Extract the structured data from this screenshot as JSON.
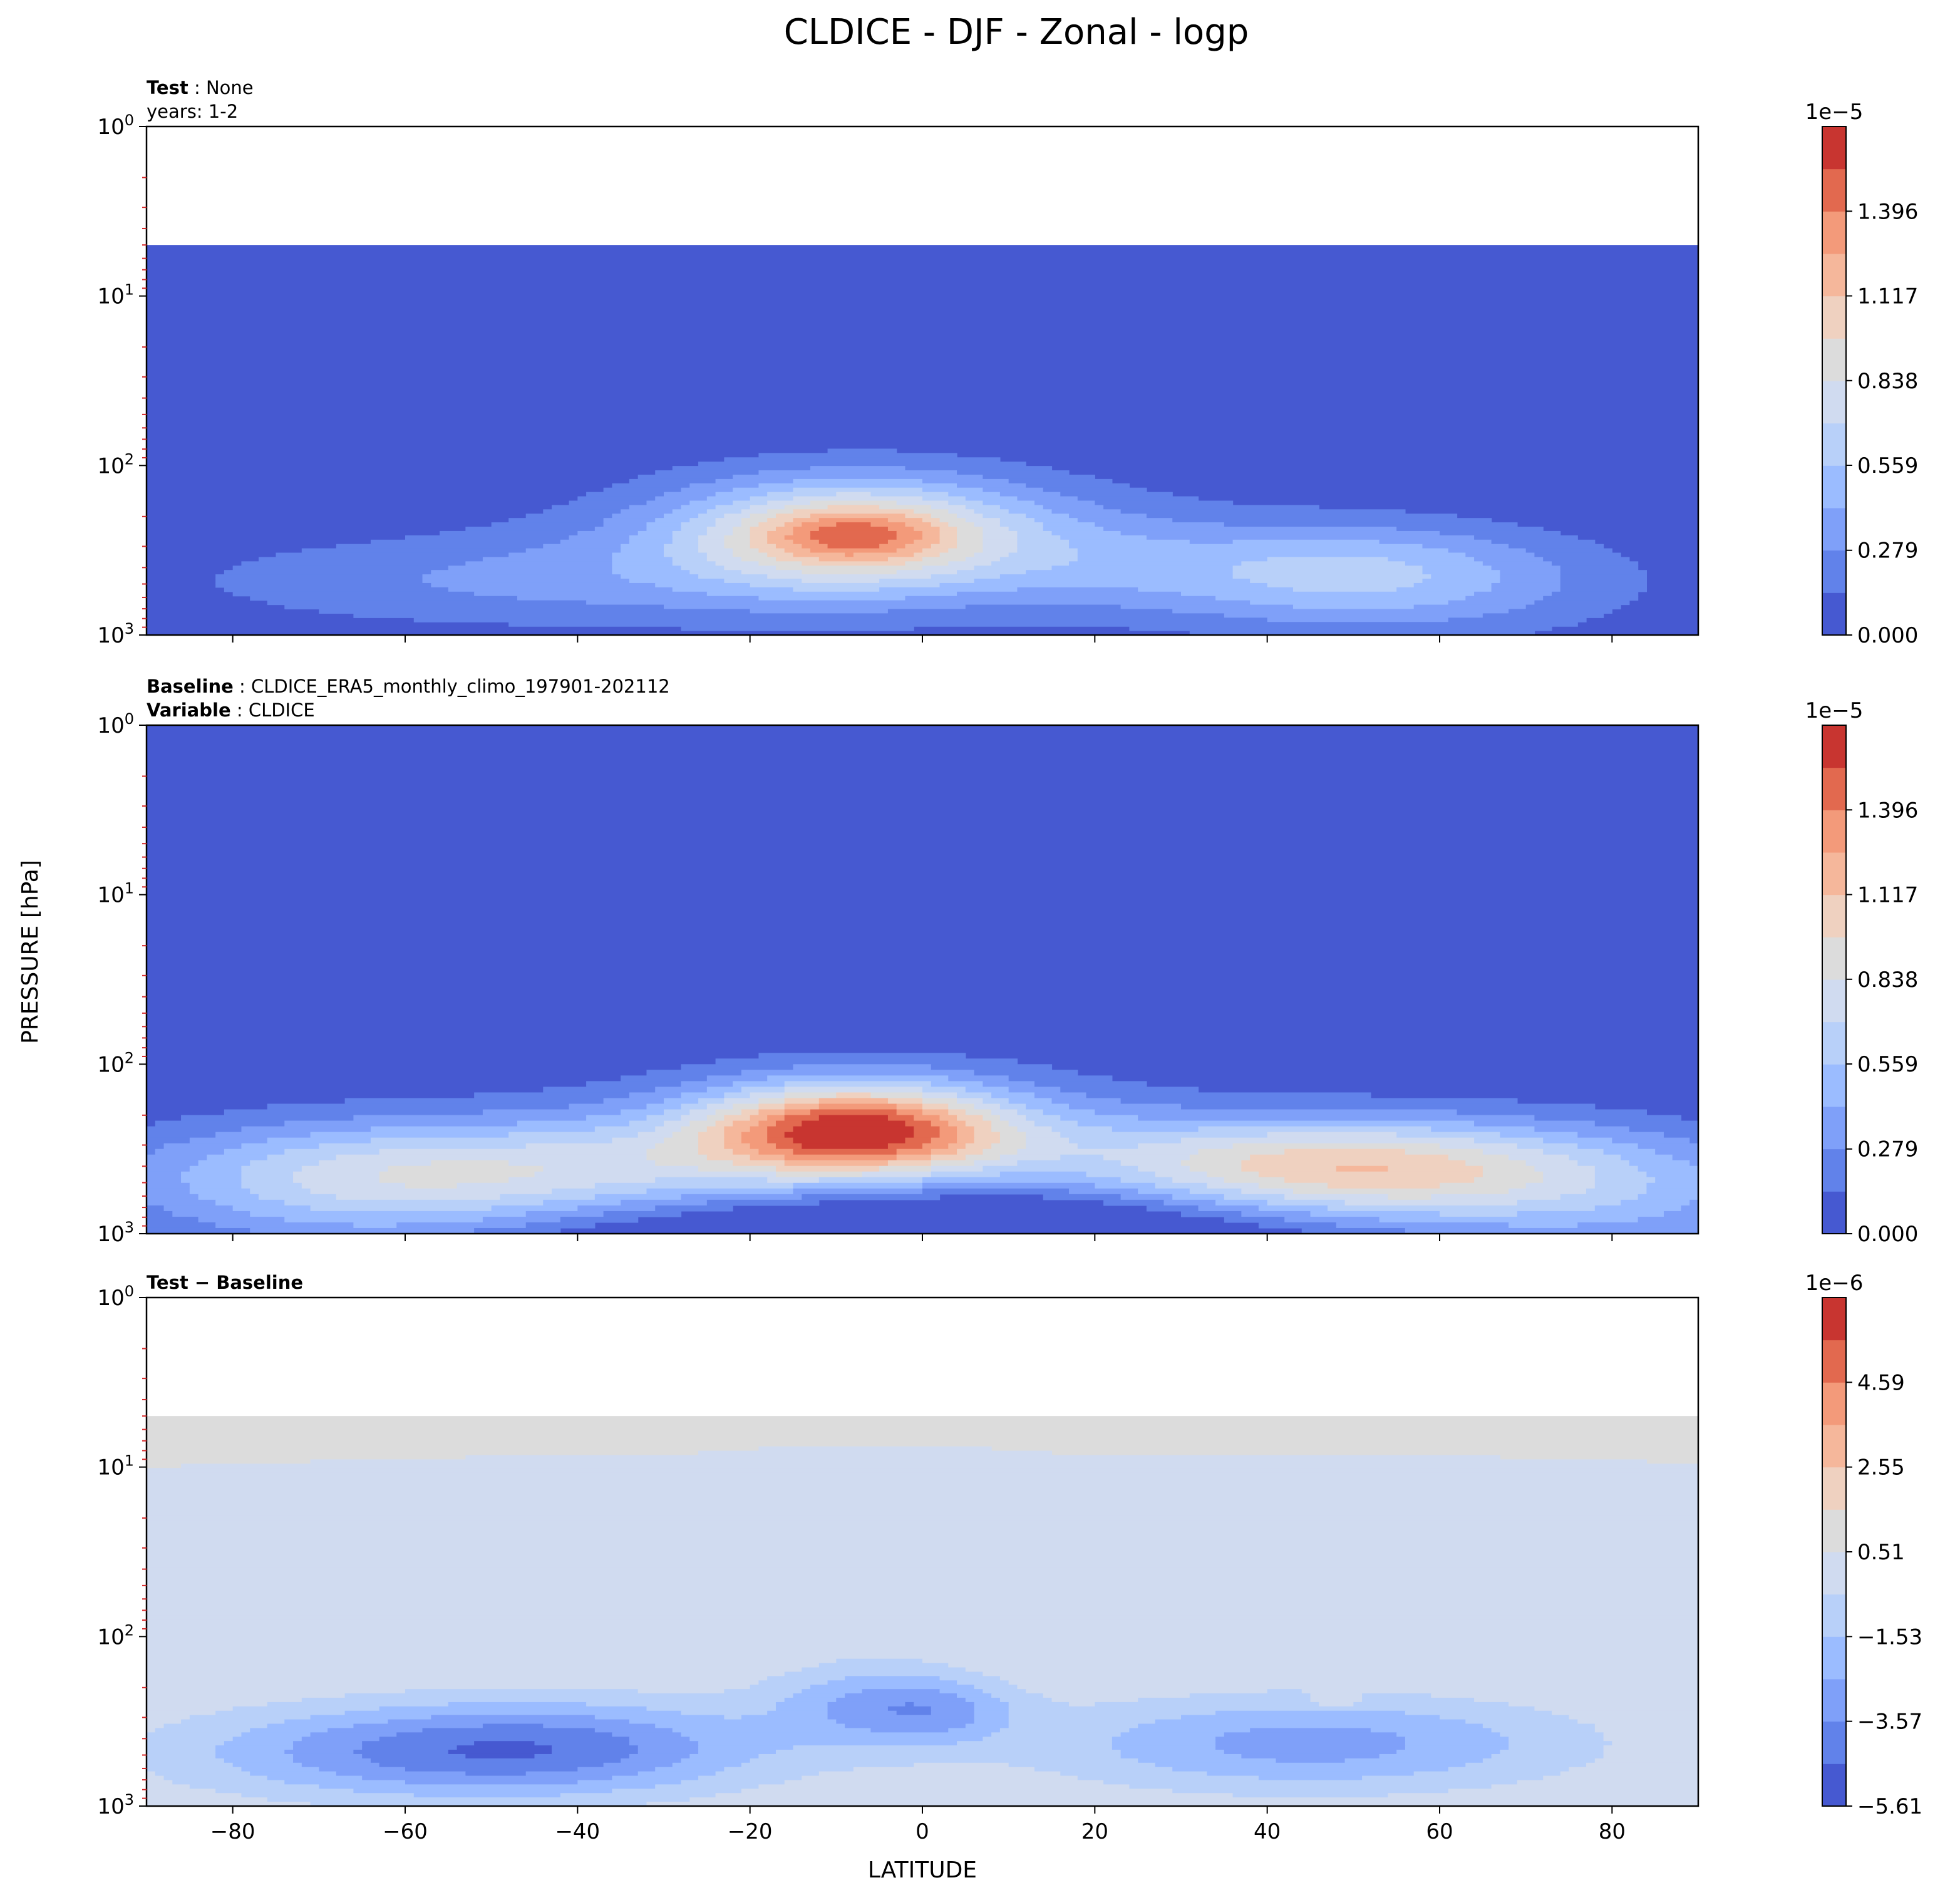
{
  "figure": {
    "title": "CLDICE - DJF - Zonal - logp",
    "xlabel": "LATITUDE",
    "ylabel": "PRESSURE [hPa]"
  },
  "colors": {
    "seq": [
      "#4659d1",
      "#6182ea",
      "#7fa0f9",
      "#9bbcff",
      "#b8d0f9",
      "#d0dbf0",
      "#dcdcdc",
      "#efd1c0",
      "#f5b79b",
      "#f39a7a",
      "#e2694f",
      "#c83530"
    ],
    "diff": [
      "#4659d1",
      "#6182ea",
      "#7fa0f9",
      "#9bbcff",
      "#b8d0f9",
      "#d0dbf0",
      "#dcdcdc",
      "#efd1c0",
      "#f5b79b",
      "#f39a7a",
      "#e2694f",
      "#c83530"
    ],
    "minor_tick": "#d62728"
  },
  "chart_data": [
    {
      "type": "contourf",
      "panel": "test",
      "label_lines": [
        {
          "bold": "Test",
          "sep": " : ",
          "text": "None"
        },
        {
          "bold": "",
          "sep": "",
          "text": "years: 1-2"
        }
      ],
      "x": {
        "range": [
          -90,
          90
        ],
        "ticks": [
          -80,
          -60,
          -40,
          -20,
          0,
          20,
          40,
          60,
          80
        ],
        "tick_labels": [
          "−80",
          "−60",
          "−40",
          "−20",
          "0",
          "20",
          "40",
          "60",
          "80"
        ],
        "show_labels": false
      },
      "y": {
        "scale": "log",
        "range": [
          1000,
          1
        ],
        "inverted": true,
        "ticks": [
          1,
          10,
          100,
          1000
        ],
        "tick_labels": [
          "10",
          "10",
          "10",
          "10"
        ],
        "tick_exponents": [
          "0",
          "1",
          "2",
          "3"
        ]
      },
      "colorbar": {
        "ticks": [
          0.0,
          0.279,
          0.559,
          0.838,
          1.117,
          1.396
        ],
        "tick_labels": [
          "0.000",
          "0.279",
          "0.559",
          "0.838",
          "1.117",
          "1.396"
        ],
        "range": [
          0,
          1.675
        ],
        "levels": 12,
        "offset_label": "1e−5"
      },
      "data_top": 5,
      "background_level": 0,
      "features": [
        {
          "lat": -8,
          "p": 255,
          "sx": 14,
          "sy": 0.22,
          "amp": 8.5
        },
        {
          "lat": -8,
          "p": 255,
          "sx": 7,
          "sy": 0.1,
          "amp": 3.5
        },
        {
          "lat": -5,
          "p": 280,
          "sx": 26,
          "sy": 0.32,
          "amp": 3.0
        },
        {
          "lat": -50,
          "p": 480,
          "sx": 28,
          "sy": 0.2,
          "amp": 2.6
        },
        {
          "lat": 47,
          "p": 420,
          "sx": 17,
          "sy": 0.2,
          "amp": 4.0
        },
        {
          "lat": 58,
          "p": 520,
          "sx": 20,
          "sy": 0.25,
          "amp": 2.4
        },
        {
          "lat": 20,
          "p": 380,
          "sx": 10,
          "sy": 0.2,
          "amp": 1.2
        }
      ],
      "suppress": []
    },
    {
      "type": "contourf",
      "panel": "baseline",
      "label_lines": [
        {
          "bold": "Baseline",
          "sep": " : ",
          "text": "CLDICE_ERA5_monthly_climo_197901-202112"
        },
        {
          "bold": "Variable",
          "sep": " : ",
          "text": "CLDICE"
        }
      ],
      "x": {
        "range": [
          -90,
          90
        ],
        "ticks": [
          -80,
          -60,
          -40,
          -20,
          0,
          20,
          40,
          60,
          80
        ],
        "tick_labels": [
          "−80",
          "−60",
          "−40",
          "−20",
          "0",
          "20",
          "40",
          "60",
          "80"
        ],
        "show_labels": false
      },
      "y": {
        "scale": "log",
        "range": [
          1000,
          1
        ],
        "inverted": true,
        "ticks": [
          1,
          10,
          100,
          1000
        ],
        "tick_labels": [
          "10",
          "10",
          "10",
          "10"
        ],
        "tick_exponents": [
          "0",
          "1",
          "2",
          "3"
        ]
      },
      "colorbar": {
        "ticks": [
          0.0,
          0.279,
          0.559,
          0.838,
          1.117,
          1.396
        ],
        "tick_labels": [
          "0.000",
          "0.279",
          "0.559",
          "0.838",
          "1.117",
          "1.396"
        ],
        "range": [
          0,
          1.675
        ],
        "levels": 12,
        "offset_label": "1e−5"
      },
      "data_top": 1,
      "background_level": 0,
      "features": [
        {
          "lat": -8,
          "p": 240,
          "sx": 12,
          "sy": 0.18,
          "amp": 11.5
        },
        {
          "lat": -5,
          "p": 260,
          "sx": 22,
          "sy": 0.28,
          "amp": 4.5
        },
        {
          "lat": -45,
          "p": 440,
          "sx": 30,
          "sy": 0.22,
          "amp": 7.0
        },
        {
          "lat": -65,
          "p": 600,
          "sx": 18,
          "sy": 0.3,
          "amp": 3.0
        },
        {
          "lat": 45,
          "p": 400,
          "sx": 22,
          "sy": 0.2,
          "amp": 8.5
        },
        {
          "lat": 62,
          "p": 520,
          "sx": 22,
          "sy": 0.25,
          "amp": 4.0
        },
        {
          "lat": 85,
          "p": 700,
          "sx": 15,
          "sy": 0.3,
          "amp": 2.0
        }
      ],
      "suppress": [
        {
          "lat": 0,
          "p": 1000,
          "sx": 30,
          "sy": 0.28,
          "amp": 5.0
        }
      ]
    },
    {
      "type": "contourf",
      "panel": "difference",
      "label_lines": [
        {
          "bold": "Test − Baseline",
          "sep": "",
          "text": ""
        }
      ],
      "x": {
        "range": [
          -90,
          90
        ],
        "ticks": [
          -80,
          -60,
          -40,
          -20,
          0,
          20,
          40,
          60,
          80
        ],
        "tick_labels": [
          "−80",
          "−60",
          "−40",
          "−20",
          "0",
          "20",
          "40",
          "60",
          "80"
        ],
        "show_labels": true
      },
      "y": {
        "scale": "log",
        "range": [
          1000,
          1
        ],
        "inverted": true,
        "ticks": [
          1,
          10,
          100,
          1000
        ],
        "tick_labels": [
          "10",
          "10",
          "10",
          "10"
        ],
        "tick_exponents": [
          "0",
          "1",
          "2",
          "3"
        ]
      },
      "colorbar": {
        "ticks": [
          -5.61,
          -3.57,
          -1.53,
          0.51,
          2.55,
          4.59
        ],
        "tick_labels": [
          "−5.61",
          "−3.57",
          "−1.53",
          "0.51",
          "2.55",
          "4.59"
        ],
        "range": [
          -5.61,
          6.63
        ],
        "levels": 12,
        "offset_label": "1e−6"
      },
      "data_top": 5,
      "background_level": 6,
      "features": [
        {
          "lat": -55,
          "p": 480,
          "sx": 22,
          "sy": 0.2,
          "amp": -4.2
        },
        {
          "lat": -38,
          "p": 420,
          "sx": 16,
          "sy": 0.2,
          "amp": -1.6
        },
        {
          "lat": -5,
          "p": 250,
          "sx": 9,
          "sy": 0.18,
          "amp": -3.0
        },
        {
          "lat": 3,
          "p": 280,
          "sx": 6,
          "sy": 0.12,
          "amp": -1.4
        },
        {
          "lat": 45,
          "p": 430,
          "sx": 22,
          "sy": 0.2,
          "amp": -3.5
        },
        {
          "lat": 48,
          "p": 245,
          "sx": 2.2,
          "sy": 0.03,
          "amp": 1.2
        }
      ],
      "suppress": []
    }
  ]
}
